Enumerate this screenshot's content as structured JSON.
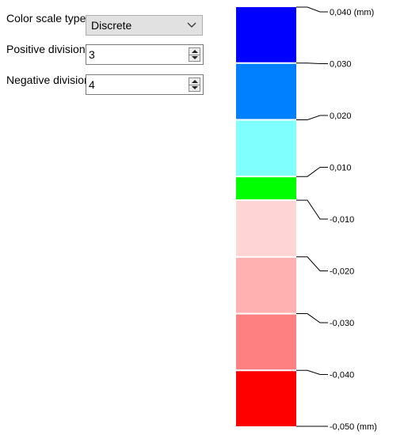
{
  "form": {
    "color_scale_label": "Color scale type",
    "color_scale_value": "Discrete",
    "positive_label": "Positive divisions",
    "positive_value": "3",
    "negative_label": "Negative divisions",
    "negative_value": "4"
  },
  "legend": {
    "segments": [
      {
        "color": "#0000ff",
        "weight": 1.0
      },
      {
        "color": "#0080ff",
        "weight": 1.0
      },
      {
        "color": "#80ffff",
        "weight": 1.0
      },
      {
        "color": "#00ff00",
        "weight": 0.4
      },
      {
        "color": "#ffd4d4",
        "weight": 1.0
      },
      {
        "color": "#ffb0b0",
        "weight": 1.0
      },
      {
        "color": "#ff8080",
        "weight": 1.0
      },
      {
        "color": "#ff0000",
        "weight": 1.0
      }
    ],
    "labels": [
      "0,040 (mm)",
      "0,030",
      "0,020",
      "0,010",
      "-0,010",
      "-0,020",
      "-0,030",
      "-0,040",
      "-0,050 (mm)"
    ]
  }
}
